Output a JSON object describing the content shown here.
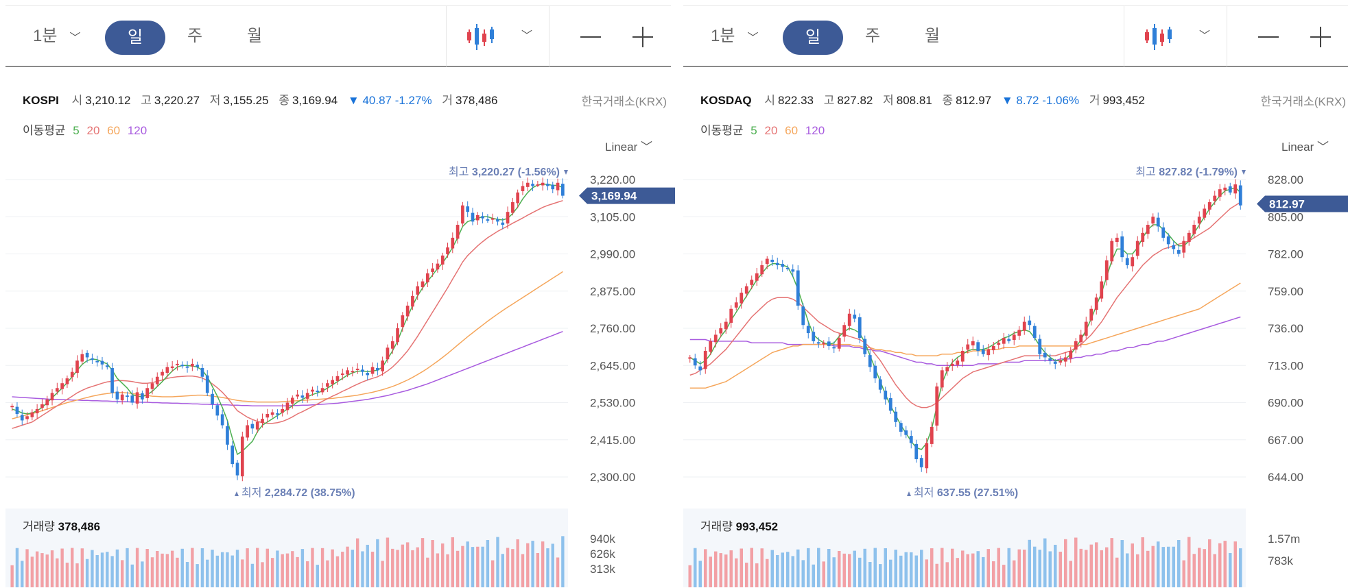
{
  "panels": [
    {
      "toolbar": {
        "tf_1min": "1분",
        "tf_day": "일",
        "tf_week": "주",
        "tf_month": "월"
      },
      "symbol": "KOSPI",
      "open_label": "시",
      "open": "3,210.12",
      "high_label": "고",
      "high": "3,220.27",
      "low_label": "저",
      "low": "3,155.25",
      "close_label": "종",
      "close": "3,169.94",
      "change": "▼ 40.87 -1.27%",
      "vol_label": "거",
      "vol": "378,486",
      "exchange": "한국거래소(KRX)",
      "ma_label": "이동평균",
      "scale": "Linear",
      "volume_title": "거래량",
      "volume_value": "378,486"
    },
    {
      "toolbar": {
        "tf_1min": "1분",
        "tf_day": "일",
        "tf_week": "주",
        "tf_month": "월"
      },
      "symbol": "KOSDAQ",
      "open_label": "시",
      "open": "822.33",
      "high_label": "고",
      "high": "827.82",
      "low_label": "저",
      "low": "808.81",
      "close_label": "종",
      "close": "812.97",
      "change": "▼ 8.72 -1.06%",
      "vol_label": "거",
      "vol": "993,452",
      "exchange": "한국거래소(KRX)",
      "ma_label": "이동평균",
      "scale": "Linear",
      "volume_title": "거래량",
      "volume_value": "993,452"
    }
  ],
  "colors": {
    "up": "#e0434e",
    "down": "#2f7fd8",
    "ma5": "#4caf50",
    "ma20": "#e57373",
    "ma60": "#f5a65b",
    "ma120": "#a85bdf",
    "accent": "#3d5a96",
    "vol_up": "#f2a0a5",
    "vol_down": "#8ec1ec"
  },
  "chart_data": [
    {
      "type": "candlestick",
      "title": "KOSPI",
      "moving_averages": [
        "5",
        "20",
        "60",
        "120"
      ],
      "y_ticks": [
        "3,220.00",
        "3,105.00",
        "2,990.00",
        "2,875.00",
        "2,760.00",
        "2,645.00",
        "2,530.00",
        "2,415.00",
        "2,300.00"
      ],
      "ylim": [
        2300,
        3220
      ],
      "max_label": "최고",
      "max_value": "3,220.27 (-1.56%)",
      "min_label": "최저",
      "min_value": "2,284.72 (38.75%)",
      "last_price": "3,169.94",
      "volume_ticks": [
        "940k",
        "626k",
        "313k"
      ],
      "volume_ylim": [
        0,
        940000
      ],
      "close_series": [
        2520,
        2495,
        2475,
        2488,
        2500,
        2510,
        2525,
        2540,
        2560,
        2575,
        2590,
        2605,
        2625,
        2660,
        2680,
        2670,
        2662,
        2655,
        2648,
        2640,
        2560,
        2540,
        2555,
        2548,
        2530,
        2562,
        2540,
        2575,
        2590,
        2610,
        2625,
        2640,
        2642,
        2650,
        2645,
        2638,
        2650,
        2640,
        2610,
        2560,
        2525,
        2490,
        2460,
        2400,
        2340,
        2305,
        2425,
        2460,
        2450,
        2470,
        2480,
        2495,
        2500,
        2495,
        2510,
        2530,
        2545,
        2555,
        2545,
        2560,
        2570,
        2565,
        2575,
        2590,
        2600,
        2612,
        2620,
        2630,
        2628,
        2635,
        2625,
        2615,
        2640,
        2630,
        2660,
        2700,
        2720,
        2760,
        2800,
        2830,
        2860,
        2890,
        2905,
        2930,
        2945,
        2960,
        2985,
        3010,
        3040,
        3080,
        3140,
        3120,
        3090,
        3110,
        3100,
        3095,
        3100,
        3090,
        3080,
        3120,
        3150,
        3180,
        3200,
        3210,
        3200,
        3205,
        3210,
        3200,
        3190,
        3210,
        3170
      ],
      "ma5": [
        2510,
        2505,
        2498,
        2495,
        2498,
        2505,
        2515,
        2530,
        2545,
        2560,
        2575,
        2592,
        2610,
        2630,
        2648,
        2660,
        2665,
        2663,
        2656,
        2650,
        2630,
        2605,
        2590,
        2575,
        2555,
        2550,
        2548,
        2555,
        2565,
        2580,
        2595,
        2612,
        2628,
        2640,
        2645,
        2645,
        2643,
        2640,
        2630,
        2610,
        2580,
        2550,
        2515,
        2475,
        2420,
        2370,
        2380,
        2395,
        2410,
        2440,
        2460,
        2470,
        2480,
        2490,
        2500,
        2510,
        2520,
        2532,
        2540,
        2548,
        2555,
        2560,
        2566,
        2575,
        2585,
        2595,
        2605,
        2615,
        2622,
        2627,
        2628,
        2626,
        2628,
        2630,
        2640,
        2665,
        2690,
        2720,
        2760,
        2795,
        2830,
        2860,
        2885,
        2905,
        2925,
        2945,
        2962,
        2985,
        3010,
        3040,
        3075,
        3090,
        3095,
        3100,
        3105,
        3105,
        3100,
        3097,
        3095,
        3100,
        3115,
        3135,
        3160,
        3180,
        3195,
        3203,
        3206,
        3205,
        3202,
        3202,
        3195
      ],
      "ma20": [
        2450,
        2455,
        2460,
        2465,
        2470,
        2480,
        2490,
        2500,
        2510,
        2520,
        2530,
        2540,
        2550,
        2560,
        2568,
        2575,
        2580,
        2585,
        2590,
        2594,
        2596,
        2598,
        2598,
        2597,
        2595,
        2592,
        2590,
        2590,
        2592,
        2596,
        2600,
        2605,
        2608,
        2610,
        2611,
        2612,
        2612,
        2610,
        2606,
        2598,
        2588,
        2576,
        2562,
        2545,
        2525,
        2505,
        2495,
        2485,
        2478,
        2472,
        2468,
        2466,
        2466,
        2468,
        2472,
        2478,
        2486,
        2495,
        2502,
        2510,
        2518,
        2526,
        2534,
        2542,
        2550,
        2557,
        2565,
        2572,
        2580,
        2587,
        2594,
        2600,
        2605,
        2610,
        2618,
        2628,
        2640,
        2655,
        2672,
        2690,
        2712,
        2735,
        2760,
        2785,
        2810,
        2835,
        2860,
        2885,
        2912,
        2938,
        2965,
        2985,
        3000,
        3015,
        3028,
        3040,
        3050,
        3060,
        3068,
        3076,
        3085,
        3093,
        3101,
        3110,
        3118,
        3126,
        3134,
        3140,
        3145,
        3150,
        3155
      ],
      "ma60": [
        2480,
        2484,
        2488,
        2492,
        2496,
        2500,
        2505,
        2510,
        2515,
        2520,
        2525,
        2530,
        2534,
        2538,
        2542,
        2546,
        2550,
        2553,
        2556,
        2558,
        2560,
        2561,
        2561,
        2560,
        2558,
        2556,
        2554,
        2552,
        2550,
        2549,
        2548,
        2548,
        2548,
        2549,
        2550,
        2551,
        2552,
        2553,
        2553,
        2552,
        2550,
        2548,
        2546,
        2543,
        2540,
        2537,
        2535,
        2534,
        2533,
        2532,
        2532,
        2532,
        2532,
        2532,
        2533,
        2534,
        2535,
        2536,
        2537,
        2538,
        2539,
        2540,
        2541,
        2542,
        2543,
        2545,
        2547,
        2549,
        2551,
        2553,
        2556,
        2559,
        2562,
        2566,
        2570,
        2575,
        2580,
        2586,
        2593,
        2600,
        2608,
        2617,
        2626,
        2636,
        2647,
        2658,
        2670,
        2682,
        2695,
        2708,
        2721,
        2734,
        2746,
        2758,
        2770,
        2782,
        2793,
        2804,
        2815,
        2825,
        2835,
        2845,
        2855,
        2865,
        2875,
        2885,
        2895,
        2905,
        2915,
        2925,
        2935
      ],
      "ma120": [
        2548,
        2547,
        2546,
        2545,
        2544,
        2543,
        2542,
        2541,
        2540,
        2540,
        2539,
        2539,
        2538,
        2538,
        2537,
        2537,
        2536,
        2536,
        2535,
        2535,
        2534,
        2534,
        2533,
        2533,
        2532,
        2532,
        2531,
        2531,
        2530,
        2530,
        2529,
        2529,
        2528,
        2528,
        2527,
        2527,
        2526,
        2526,
        2525,
        2525,
        2524,
        2524,
        2523,
        2523,
        2522,
        2522,
        2521,
        2521,
        2520,
        2520,
        2520,
        2520,
        2520,
        2520,
        2520,
        2520,
        2521,
        2521,
        2522,
        2522,
        2523,
        2524,
        2525,
        2526,
        2527,
        2528,
        2530,
        2532,
        2534,
        2536,
        2538,
        2540,
        2543,
        2546,
        2549,
        2552,
        2556,
        2560,
        2564,
        2568,
        2573,
        2578,
        2583,
        2588,
        2594,
        2600,
        2606,
        2612,
        2618,
        2624,
        2630,
        2636,
        2642,
        2648,
        2654,
        2660,
        2666,
        2672,
        2678,
        2684,
        2690,
        2696,
        2702,
        2708,
        2714,
        2720,
        2726,
        2732,
        2738,
        2744,
        2750
      ]
    },
    {
      "type": "candlestick",
      "title": "KOSDAQ",
      "moving_averages": [
        "5",
        "20",
        "60",
        "120"
      ],
      "y_ticks": [
        "828.00",
        "805.00",
        "782.00",
        "759.00",
        "736.00",
        "713.00",
        "690.00",
        "667.00",
        "644.00"
      ],
      "ylim": [
        644,
        828
      ],
      "max_label": "최고",
      "max_value": "827.82 (-1.79%)",
      "min_label": "최저",
      "min_value": "637.55 (27.51%)",
      "last_price": "812.97",
      "volume_ticks": [
        "1.57m",
        "783k"
      ],
      "volume_ylim": [
        0,
        1570000
      ],
      "close_series": [
        718,
        713,
        710,
        722,
        728,
        732,
        736,
        740,
        748,
        752,
        758,
        762,
        766,
        770,
        775,
        779,
        777,
        775,
        774,
        773,
        771,
        750,
        738,
        733,
        728,
        727,
        727,
        725,
        724,
        730,
        738,
        745,
        742,
        730,
        720,
        712,
        705,
        698,
        692,
        685,
        678,
        672,
        670,
        665,
        655,
        650,
        665,
        675,
        700,
        710,
        712,
        714,
        716,
        722,
        726,
        728,
        722,
        720,
        723,
        725,
        727,
        730,
        728,
        732,
        735,
        740,
        738,
        730,
        720,
        718,
        716,
        714,
        716,
        718,
        722,
        728,
        732,
        740,
        748,
        755,
        765,
        778,
        790,
        792,
        780,
        775,
        780,
        790,
        795,
        800,
        805,
        799,
        792,
        788,
        785,
        782,
        790,
        795,
        800,
        805,
        810,
        814,
        818,
        822,
        823,
        820,
        825,
        812
      ],
      "ma5": [
        718,
        716,
        714,
        716,
        720,
        726,
        731,
        735,
        741,
        746,
        751,
        756,
        761,
        766,
        770,
        774,
        776,
        776,
        775,
        774,
        768,
        760,
        750,
        740,
        732,
        729,
        727,
        726,
        727,
        731,
        734,
        736,
        735,
        733,
        727,
        719,
        711,
        703,
        695,
        688,
        682,
        676,
        671,
        666,
        662,
        661,
        665,
        674,
        688,
        702,
        710,
        715,
        718,
        720,
        722,
        723,
        723,
        723,
        724,
        726,
        728,
        730,
        731,
        733,
        734,
        735,
        734,
        730,
        725,
        721,
        718,
        716,
        716,
        717,
        720,
        724,
        729,
        735,
        742,
        750,
        758,
        768,
        778,
        785,
        785,
        782,
        782,
        786,
        792,
        797,
        800,
        800,
        797,
        794,
        790,
        787,
        787,
        790,
        795,
        800,
        805,
        810,
        814,
        818,
        821,
        822,
        823,
        820
      ],
      "ma20": [
        707,
        708,
        710,
        712,
        714,
        717,
        720,
        723,
        727,
        731,
        735,
        739,
        743,
        746,
        749,
        752,
        754,
        755,
        755,
        755,
        754,
        752,
        749,
        746,
        743,
        740,
        738,
        736,
        734,
        733,
        732,
        731,
        730,
        729,
        727,
        724,
        720,
        716,
        711,
        706,
        701,
        697,
        693,
        690,
        688,
        687,
        687,
        688,
        690,
        693,
        696,
        699,
        702,
        705,
        707,
        709,
        710,
        711,
        712,
        713,
        714,
        715,
        716,
        717,
        718,
        719,
        719,
        719,
        719,
        719,
        719,
        719,
        720,
        721,
        722,
        724,
        726,
        729,
        732,
        736,
        740,
        745,
        750,
        755,
        759,
        763,
        767,
        771,
        775,
        778,
        781,
        783,
        785,
        786,
        787,
        788,
        789,
        790,
        792,
        794,
        796,
        798,
        801,
        804,
        807,
        810,
        812,
        814
      ],
      "ma60": [
        699,
        699,
        699,
        699,
        700,
        701,
        702,
        703,
        705,
        707,
        709,
        711,
        713,
        715,
        717,
        719,
        721,
        722,
        723,
        724,
        725,
        725,
        726,
        726,
        726,
        726,
        726,
        726,
        726,
        726,
        726,
        726,
        725,
        725,
        724,
        724,
        723,
        723,
        722,
        722,
        721,
        721,
        720,
        720,
        719,
        719,
        719,
        719,
        719,
        720,
        720,
        720,
        721,
        721,
        721,
        722,
        722,
        722,
        723,
        723,
        723,
        724,
        724,
        724,
        725,
        725,
        725,
        725,
        725,
        725,
        725,
        725,
        725,
        725,
        725,
        725,
        726,
        726,
        727,
        728,
        729,
        730,
        731,
        732,
        733,
        734,
        735,
        736,
        737,
        738,
        739,
        740,
        741,
        742,
        743,
        744,
        745,
        746,
        747,
        748,
        750,
        752,
        754,
        756,
        758,
        760,
        762,
        764
      ],
      "ma120": [
        729,
        729,
        729,
        729,
        728,
        728,
        728,
        728,
        728,
        728,
        728,
        728,
        727,
        727,
        727,
        727,
        727,
        727,
        727,
        726,
        726,
        726,
        726,
        726,
        726,
        726,
        726,
        726,
        725,
        725,
        725,
        725,
        724,
        724,
        723,
        723,
        722,
        722,
        721,
        720,
        719,
        718,
        717,
        716,
        715,
        715,
        714,
        714,
        713,
        713,
        713,
        713,
        713,
        713,
        713,
        713,
        714,
        714,
        714,
        714,
        714,
        715,
        715,
        715,
        715,
        716,
        716,
        716,
        716,
        716,
        716,
        716,
        717,
        717,
        717,
        718,
        718,
        719,
        719,
        720,
        720,
        721,
        722,
        722,
        723,
        724,
        724,
        725,
        726,
        726,
        727,
        728,
        728,
        729,
        730,
        731,
        732,
        733,
        734,
        735,
        736,
        737,
        738,
        739,
        740,
        741,
        742,
        743
      ]
    }
  ]
}
